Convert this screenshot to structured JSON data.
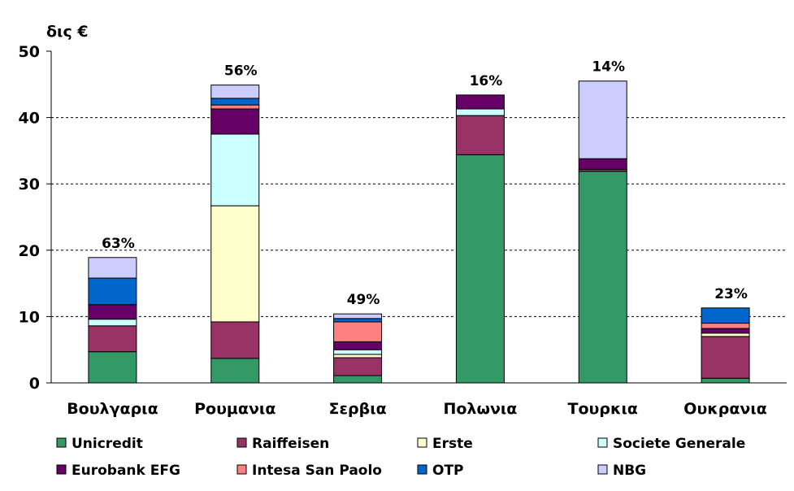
{
  "chart_data": {
    "type": "stacked_bar",
    "y_label": "δις €",
    "categories": [
      "Βουλγαρια",
      "Ρουμανια",
      "Σερβια",
      "Πολωνια",
      "Τουρκια",
      "Ουκρανια"
    ],
    "bar_labels": [
      "63%",
      "56%",
      "49%",
      "16%",
      "14%",
      "23%"
    ],
    "series": [
      {
        "name": "Unicredit",
        "color": "#339966",
        "values": [
          4.7,
          3.7,
          1.1,
          34.4,
          31.9,
          0.7
        ]
      },
      {
        "name": "Raiffeisen",
        "color": "#993366",
        "values": [
          3.9,
          5.5,
          2.7,
          5.9,
          0.3,
          6.3
        ]
      },
      {
        "name": "Erste",
        "color": "#ffffcc",
        "values": [
          0,
          17.5,
          0.5,
          0,
          0,
          0.5
        ]
      },
      {
        "name": "Societe Generale",
        "color": "#ccffff",
        "values": [
          1.0,
          10.8,
          0.7,
          1.0,
          0,
          0
        ]
      },
      {
        "name": "Eurobank EFG",
        "color": "#660066",
        "values": [
          2.2,
          3.8,
          1.2,
          2.1,
          1.6,
          0.7
        ]
      },
      {
        "name": "Intesa San Paolo",
        "color": "#ff8080",
        "values": [
          0,
          0.6,
          3.0,
          0,
          0,
          0.8
        ]
      },
      {
        "name": "OTP",
        "color": "#0066cc",
        "values": [
          4.0,
          1.0,
          0.5,
          0,
          0,
          2.3
        ]
      },
      {
        "name": "NBG",
        "color": "#ccccff",
        "values": [
          3.1,
          2.0,
          0.7,
          0,
          11.7,
          0
        ]
      }
    ],
    "ylim": [
      0,
      50
    ],
    "yticks": [
      0,
      10,
      20,
      30,
      40,
      50
    ],
    "grid": true
  }
}
